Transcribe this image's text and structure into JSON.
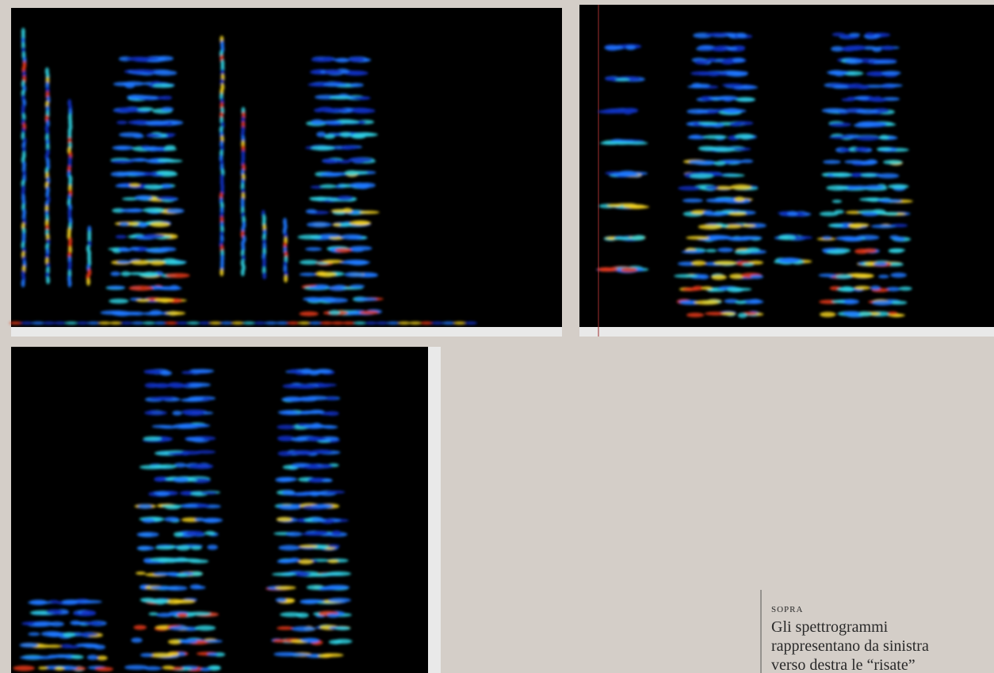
{
  "caption": {
    "label": "sopra",
    "lines": [
      "Gli spettrogrammi",
      "rappresentano da sinistra",
      "verso destra le “risate”"
    ]
  }
}
